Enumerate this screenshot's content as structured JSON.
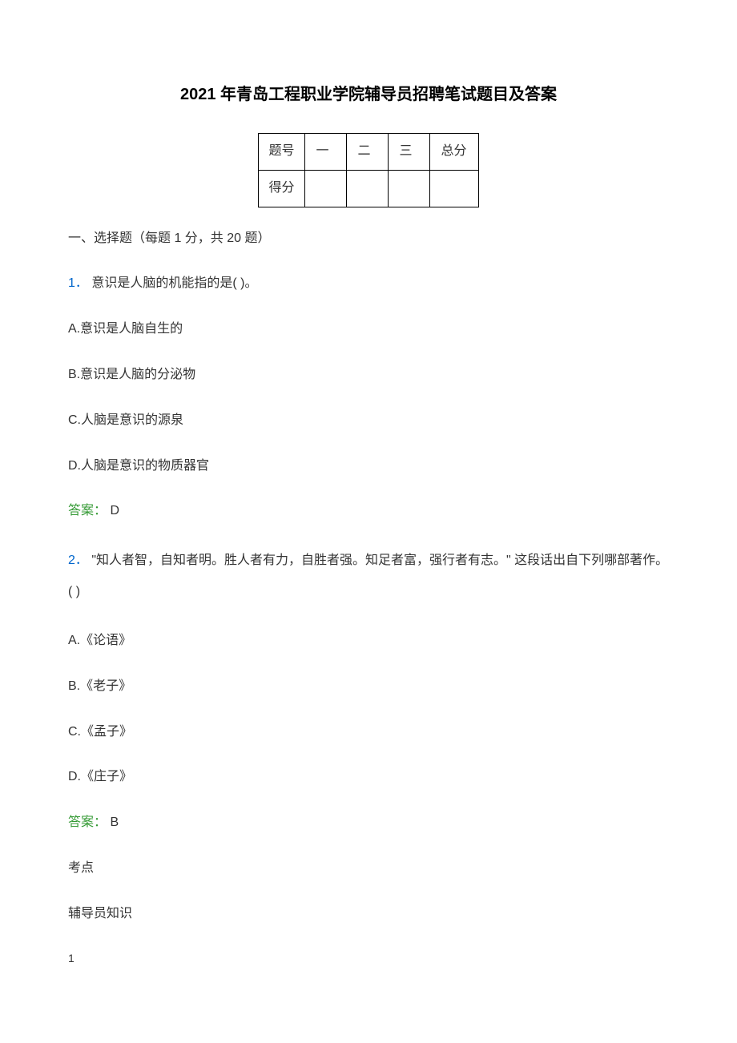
{
  "title": "2021 年青岛工程职业学院辅导员招聘笔试题目及答案",
  "score_table": {
    "row1": [
      "题号",
      "一",
      "二",
      "三",
      "总分"
    ],
    "row2_label": "得分"
  },
  "section_header": "一、选择题（每题 1 分，共 20 题）",
  "q1": {
    "number": "1．",
    "text": "意识是人脑的机能指的是( )。",
    "options": {
      "a": "A.意识是人脑自生的",
      "b": "B.意识是人脑的分泌物",
      "c": "C.人脑是意识的源泉",
      "d": "D.人脑是意识的物质器官"
    },
    "answer_label": "答案：",
    "answer_value": "D"
  },
  "q2": {
    "number": "2．",
    "text": "\"知人者智，自知者明。胜人者有力，自胜者强。知足者富，强行者有志。\" 这段话出自下列哪部著作。( )",
    "options": {
      "a": "A.《论语》",
      "b": "B.《老子》",
      "c": "C.《孟子》",
      "d": "D.《庄子》"
    },
    "answer_label": "答案：",
    "answer_value": "B"
  },
  "extra": {
    "line1": "考点",
    "line2": "辅导员知识"
  },
  "page_number": "1",
  "colors": {
    "question_number": "#0066cc",
    "answer_label": "#339933",
    "text": "#333333",
    "background": "#ffffff",
    "border": "#000000"
  },
  "typography": {
    "title_fontsize": 20,
    "body_fontsize": 16,
    "page_number_fontsize": 14
  }
}
